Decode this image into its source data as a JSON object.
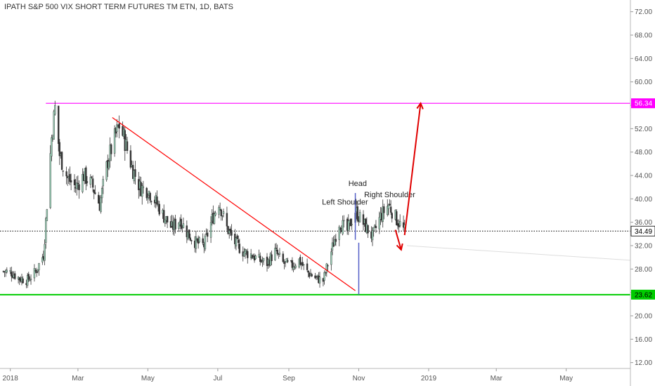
{
  "chart_data": {
    "type": "candlestick",
    "title": "IPATH S&P 500 VIX SHORT TERM FUTURES TM ETN, 1D, BATS",
    "y_axis": {
      "ticks": [
        "72.00",
        "68.00",
        "64.00",
        "60.00",
        "56.00",
        "52.00",
        "48.00",
        "44.00",
        "40.00",
        "36.00",
        "32.00",
        "28.00",
        "24.00",
        "20.00",
        "16.00",
        "12.00"
      ],
      "ylim": [
        11,
        74
      ],
      "position": "right"
    },
    "x_axis": {
      "ticks": [
        {
          "label": "2018",
          "date": "2018-01-01"
        },
        {
          "label": "Mar",
          "date": "2018-03-01"
        },
        {
          "label": "May",
          "date": "2018-05-01"
        },
        {
          "label": "Jul",
          "date": "2018-07-01"
        },
        {
          "label": "Sep",
          "date": "2018-09-01"
        },
        {
          "label": "Nov",
          "date": "2018-11-01"
        },
        {
          "label": "2019",
          "date": "2019-01-01"
        },
        {
          "label": "Mar",
          "date": "2019-03-01"
        },
        {
          "label": "May",
          "date": "2019-05-01"
        }
      ],
      "xlim": [
        "2017-12-23",
        "2019-06-26"
      ]
    },
    "close_series": [
      [
        "2017-12-26",
        27.6
      ],
      [
        "2018-01-02",
        27.4
      ],
      [
        "2018-01-09",
        26.4
      ],
      [
        "2018-01-16",
        26.1
      ],
      [
        "2018-01-23",
        27.5
      ],
      [
        "2018-01-30",
        30.5
      ],
      [
        "2018-02-06",
        50.5
      ],
      [
        "2018-02-09",
        55.5
      ],
      [
        "2018-02-13",
        47.5
      ],
      [
        "2018-02-20",
        43.5
      ],
      [
        "2018-02-27",
        42.0
      ],
      [
        "2018-03-06",
        44.0
      ],
      [
        "2018-03-13",
        42.5
      ],
      [
        "2018-03-20",
        39.0
      ],
      [
        "2018-03-27",
        46.5
      ],
      [
        "2018-04-03",
        51.0
      ],
      [
        "2018-04-06",
        52.5
      ],
      [
        "2018-04-10",
        50.5
      ],
      [
        "2018-04-17",
        45.5
      ],
      [
        "2018-04-24",
        42.0
      ],
      [
        "2018-05-01",
        41.5
      ],
      [
        "2018-05-08",
        39.5
      ],
      [
        "2018-05-15",
        37.0
      ],
      [
        "2018-05-22",
        35.0
      ],
      [
        "2018-05-29",
        36.5
      ],
      [
        "2018-06-05",
        34.0
      ],
      [
        "2018-06-12",
        32.5
      ],
      [
        "2018-06-19",
        32.0
      ],
      [
        "2018-06-26",
        36.5
      ],
      [
        "2018-07-02",
        39.5
      ],
      [
        "2018-07-09",
        35.0
      ],
      [
        "2018-07-16",
        32.5
      ],
      [
        "2018-07-23",
        31.0
      ],
      [
        "2018-07-30",
        30.5
      ],
      [
        "2018-08-06",
        29.5
      ],
      [
        "2018-08-13",
        29.0
      ],
      [
        "2018-08-20",
        31.0
      ],
      [
        "2018-08-27",
        29.0
      ],
      [
        "2018-09-03",
        28.5
      ],
      [
        "2018-09-10",
        29.5
      ],
      [
        "2018-09-17",
        27.5
      ],
      [
        "2018-09-24",
        26.5
      ],
      [
        "2018-10-01",
        26.0
      ],
      [
        "2018-10-08",
        31.0
      ],
      [
        "2018-10-15",
        36.0
      ],
      [
        "2018-10-22",
        34.5
      ],
      [
        "2018-10-29",
        38.0
      ],
      [
        "2018-11-01",
        37.0
      ],
      [
        "2018-11-06",
        35.5
      ],
      [
        "2018-11-13",
        33.5
      ],
      [
        "2018-11-20",
        37.0
      ],
      [
        "2018-11-27",
        39.0
      ],
      [
        "2018-12-04",
        36.5
      ],
      [
        "2018-12-11",
        34.5
      ]
    ],
    "price_lines": [
      {
        "label": "56.34",
        "value": 56.34,
        "color": "#ff00ff"
      },
      {
        "label": "23.62",
        "value": 23.62,
        "color": "#00cc00"
      },
      {
        "label": "34.49",
        "value": 34.49,
        "color": "#000000"
      }
    ],
    "annotations": [
      {
        "text": "Left Shoulder",
        "date": "2018-10-20",
        "value": 39.0
      },
      {
        "text": "Head",
        "date": "2018-10-31",
        "value": 42.2
      },
      {
        "text": "Right Shoulder",
        "date": "2018-11-28",
        "value": 40.3
      }
    ],
    "trendline": {
      "from": [
        "2018-03-31",
        53.9
      ],
      "to": [
        "2018-10-29",
        24.3
      ],
      "color": "#ff0000"
    },
    "projection_arrows": [
      {
        "from": [
          "2018-12-11",
          33.8
        ],
        "to": [
          "2018-12-25",
          56.34
        ],
        "color": "#e00000"
      },
      {
        "from": [
          "2018-12-03",
          34.7
        ],
        "to": [
          "2018-12-08",
          31.3
        ],
        "color": "#e00000"
      }
    ],
    "grid": false,
    "legend": "none"
  },
  "colors": {
    "up": "#9ccfb7",
    "down": "#333333",
    "resistance": "#ff00ff",
    "support": "#00cc00",
    "trend": "#ff0000",
    "head_marker": "#5560c8"
  }
}
